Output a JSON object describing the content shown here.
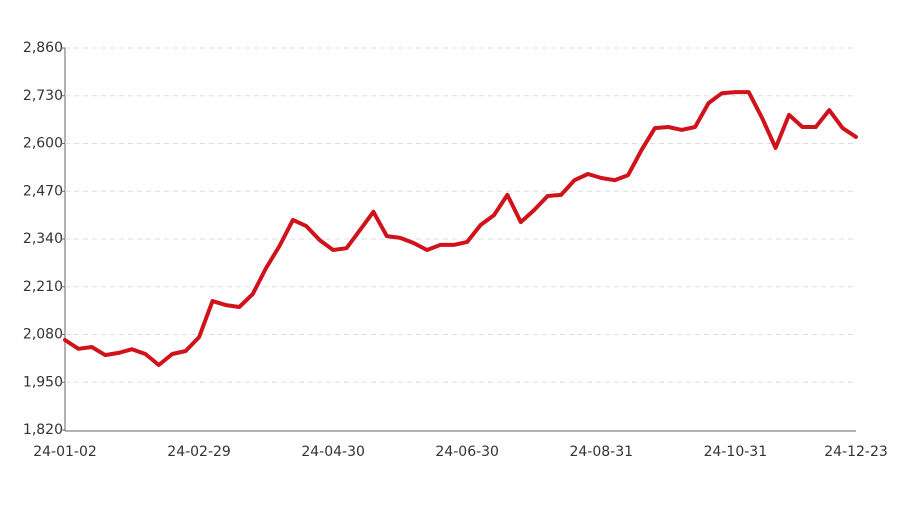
{
  "chart_data": {
    "type": "line",
    "categories": [
      "24-01-02",
      null,
      null,
      null,
      null,
      null,
      null,
      null,
      null,
      null,
      "24-02-29",
      null,
      null,
      null,
      null,
      null,
      null,
      null,
      null,
      null,
      "24-04-30",
      null,
      null,
      null,
      null,
      null,
      null,
      null,
      null,
      null,
      "24-06-30",
      null,
      null,
      null,
      null,
      null,
      null,
      null,
      null,
      null,
      "24-08-31",
      null,
      null,
      null,
      null,
      null,
      null,
      null,
      null,
      null,
      "24-10-31",
      null,
      null,
      null,
      null,
      null,
      null,
      null,
      null,
      "24-12-23"
    ],
    "series": [
      {
        "color": "#d0121b",
        "values": [
          2065,
          2041,
          2046,
          2024,
          2030,
          2040,
          2027,
          1997,
          2027,
          2035,
          2073,
          2171,
          2160,
          2155,
          2190,
          2261,
          2321,
          2392,
          2375,
          2337,
          2310,
          2315,
          2364,
          2414,
          2348,
          2343,
          2329,
          2310,
          2324,
          2324,
          2332,
          2378,
          2405,
          2460,
          2386,
          2419,
          2457,
          2460,
          2500,
          2517,
          2506,
          2500,
          2514,
          2582,
          2642,
          2645,
          2637,
          2645,
          2710,
          2737,
          2740,
          2740,
          2669,
          2588,
          2678,
          2645,
          2645,
          2691,
          2642,
          2618
        ]
      }
    ],
    "ylim": [
      1820,
      2860
    ],
    "yticks": [
      {
        "value": 1820,
        "label": "1,820"
      },
      {
        "value": 1950,
        "label": "1,950"
      },
      {
        "value": 2080,
        "label": "2,080"
      },
      {
        "value": 2210,
        "label": "2,210"
      },
      {
        "value": 2340,
        "label": "2,340"
      },
      {
        "value": 2470,
        "label": "2,470"
      },
      {
        "value": 2600,
        "label": "2,600"
      },
      {
        "value": 2730,
        "label": "2,730"
      },
      {
        "value": 2860,
        "label": "2,860"
      }
    ],
    "grid": true
  }
}
